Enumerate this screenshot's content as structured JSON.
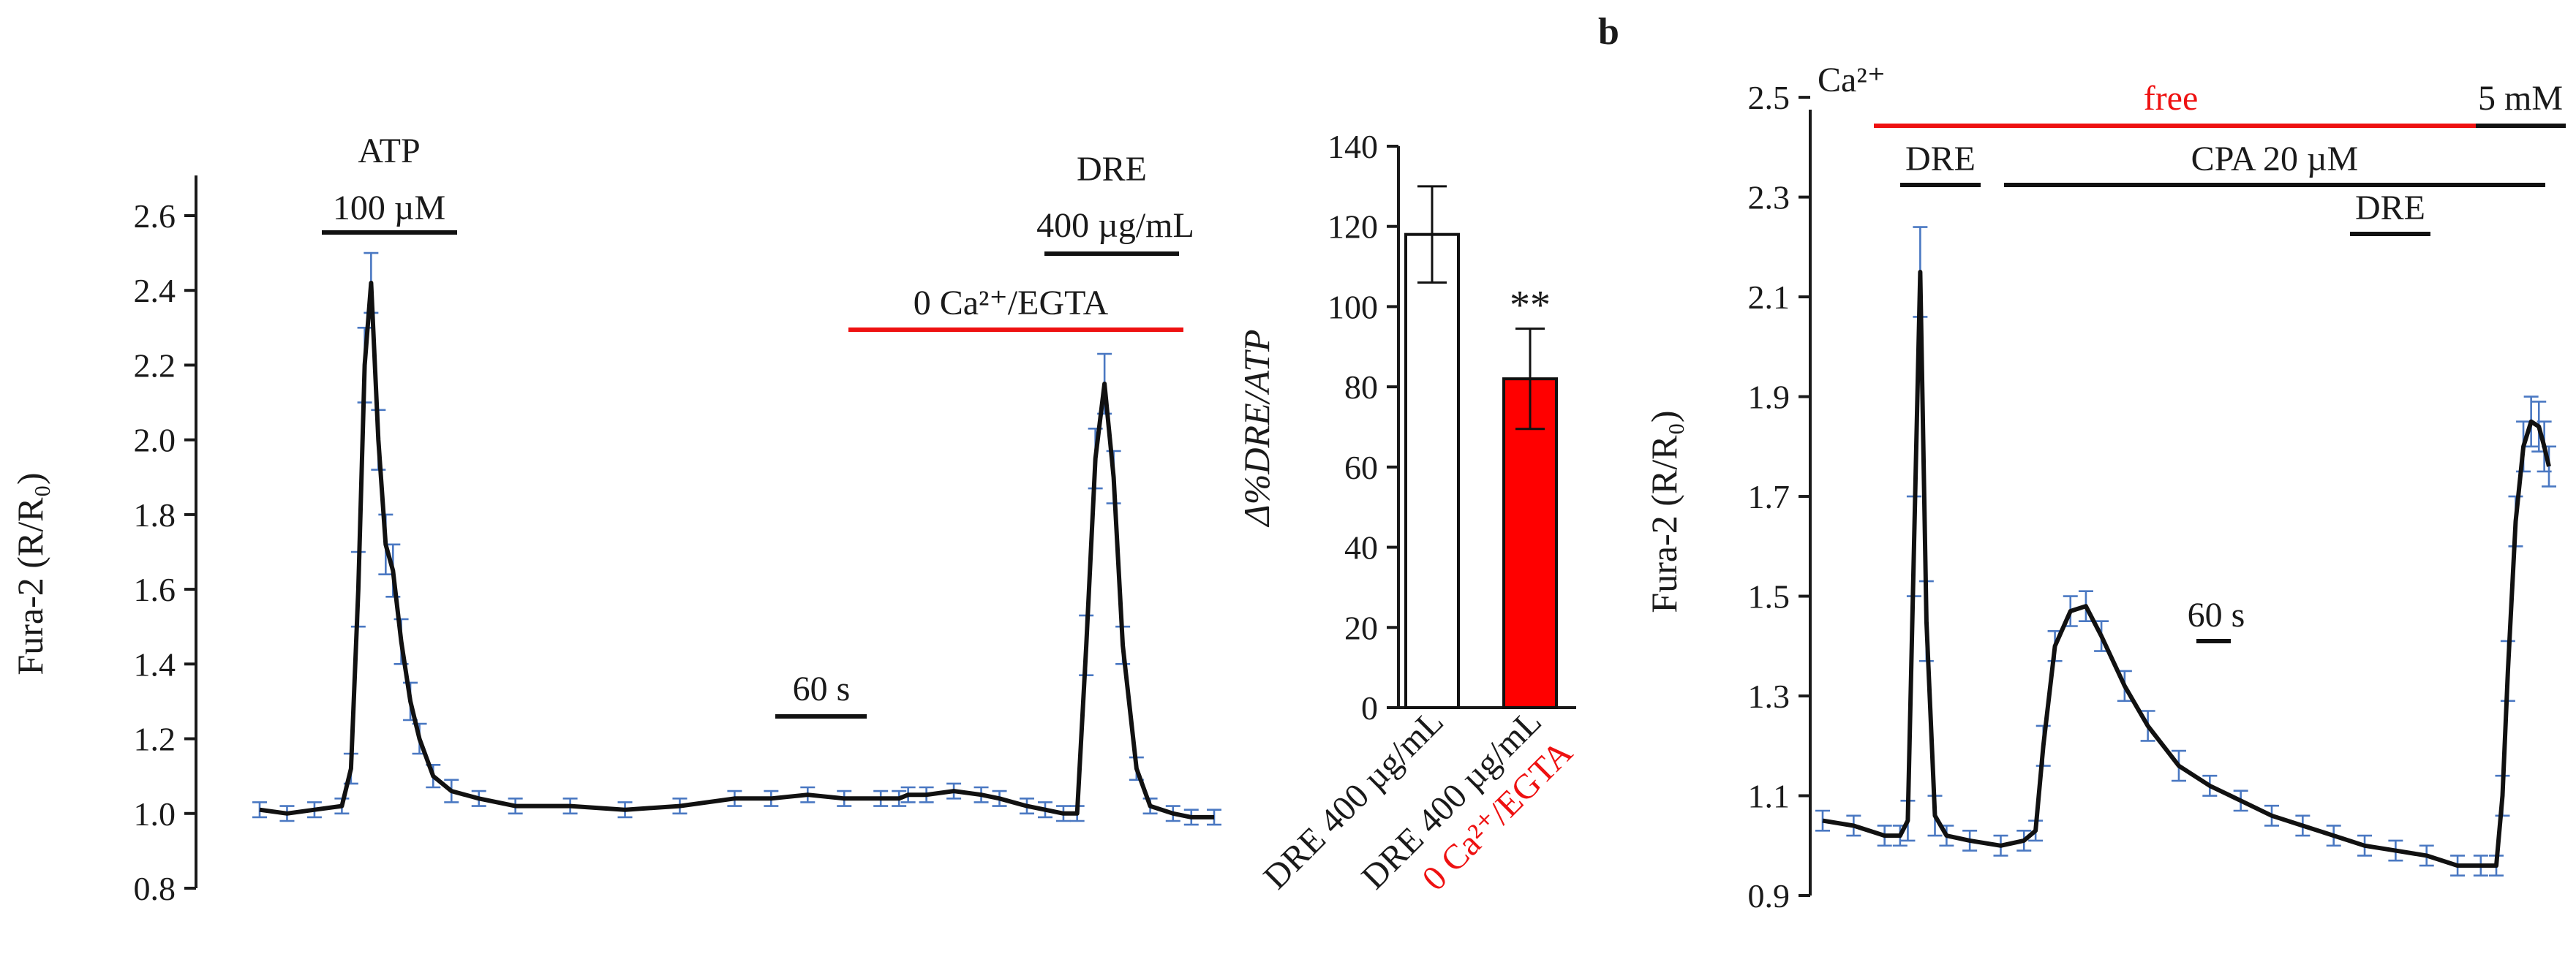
{
  "panel_b_label": "b",
  "chart_data": [
    {
      "type": "line",
      "ylabel": "Fura-2 (R/R₀)",
      "ylim": [
        0.8,
        2.6
      ],
      "yticks": [
        "0.8",
        "1.0",
        "1.2",
        "1.4",
        "1.6",
        "1.8",
        "2.0",
        "2.2",
        "2.4",
        "2.6"
      ],
      "time_scale_label": "60 s",
      "series": [
        {
          "x": [
            0,
            30,
            60,
            90,
            100,
            108,
            115,
            122,
            130,
            138,
            146,
            155,
            165,
            175,
            190,
            210,
            240,
            280,
            340,
            400,
            460,
            520,
            560,
            600,
            640,
            680,
            700,
            710,
            730,
            760,
            790,
            810,
            840,
            860,
            880,
            895,
            905,
            915,
            925,
            935,
            945,
            960,
            975,
            1000,
            1020,
            1045
          ],
          "y": [
            1.01,
            1.0,
            1.01,
            1.02,
            1.12,
            1.6,
            2.2,
            2.42,
            2.0,
            1.72,
            1.65,
            1.46,
            1.3,
            1.2,
            1.1,
            1.06,
            1.04,
            1.02,
            1.02,
            1.01,
            1.02,
            1.04,
            1.04,
            1.05,
            1.04,
            1.04,
            1.04,
            1.05,
            1.05,
            1.06,
            1.05,
            1.04,
            1.02,
            1.01,
            1.0,
            1.0,
            1.45,
            1.95,
            2.15,
            1.9,
            1.45,
            1.12,
            1.02,
            1.0,
            0.99,
            0.99
          ],
          "err": [
            0.02,
            0.02,
            0.02,
            0.02,
            0.04,
            0.1,
            0.1,
            0.08,
            0.08,
            0.08,
            0.07,
            0.06,
            0.05,
            0.04,
            0.03,
            0.03,
            0.02,
            0.02,
            0.02,
            0.02,
            0.02,
            0.02,
            0.02,
            0.02,
            0.02,
            0.02,
            0.02,
            0.02,
            0.02,
            0.02,
            0.02,
            0.02,
            0.02,
            0.02,
            0.02,
            0.02,
            0.08,
            0.08,
            0.08,
            0.07,
            0.05,
            0.03,
            0.02,
            0.02,
            0.02,
            0.02
          ]
        }
      ],
      "annotations": {
        "atp_line1": "ATP",
        "atp_line2": "100 µM",
        "dre_line1": "DRE",
        "dre_line2": "400 µg/mL",
        "ca_free": "0 Ca²⁺/EGTA"
      }
    },
    {
      "type": "bar",
      "ylabel": "Δ%DRE/ATP",
      "ylim": [
        0,
        140
      ],
      "yticks": [
        "0",
        "20",
        "40",
        "60",
        "80",
        "100",
        "120",
        "140"
      ],
      "categories": [
        "DRE 400 µg/mL",
        "DRE 400 µg/mL"
      ],
      "category_line2": [
        "",
        "0 Ca²⁺/EGTA"
      ],
      "values": [
        118,
        82
      ],
      "errors": [
        12,
        12.5
      ],
      "bar_colors": [
        "#ffffff",
        "#ff0000"
      ],
      "significance": [
        "",
        "**"
      ]
    },
    {
      "type": "line",
      "ylabel": "Fura-2 (R/R₀)",
      "ylim": [
        0.9,
        2.55
      ],
      "yticks": [
        "0.9",
        "1.1",
        "1.3",
        "1.5",
        "1.7",
        "1.9",
        "2.1",
        "2.3",
        "2.5"
      ],
      "time_scale_label": "60 s",
      "series": [
        {
          "x": [
            0,
            40,
            80,
            100,
            110,
            118,
            126,
            134,
            145,
            160,
            190,
            230,
            260,
            275,
            285,
            300,
            320,
            340,
            360,
            390,
            420,
            460,
            500,
            540,
            580,
            620,
            660,
            700,
            740,
            780,
            820,
            850,
            870,
            878,
            885,
            895,
            905,
            915,
            925,
            932,
            938
          ],
          "y": [
            1.05,
            1.04,
            1.02,
            1.02,
            1.05,
            1.6,
            2.15,
            1.45,
            1.06,
            1.02,
            1.01,
            1.0,
            1.01,
            1.03,
            1.2,
            1.4,
            1.47,
            1.48,
            1.42,
            1.32,
            1.24,
            1.16,
            1.12,
            1.09,
            1.06,
            1.04,
            1.02,
            1.0,
            0.99,
            0.98,
            0.96,
            0.96,
            0.96,
            1.1,
            1.35,
            1.65,
            1.8,
            1.85,
            1.84,
            1.8,
            1.76
          ],
          "err": [
            0.02,
            0.02,
            0.02,
            0.02,
            0.04,
            0.1,
            0.09,
            0.08,
            0.04,
            0.02,
            0.02,
            0.02,
            0.02,
            0.02,
            0.04,
            0.03,
            0.03,
            0.03,
            0.03,
            0.03,
            0.03,
            0.03,
            0.02,
            0.02,
            0.02,
            0.02,
            0.02,
            0.02,
            0.02,
            0.02,
            0.02,
            0.02,
            0.02,
            0.04,
            0.06,
            0.05,
            0.05,
            0.05,
            0.05,
            0.05,
            0.04
          ]
        }
      ],
      "annotations": {
        "ca_label": "Ca²⁺",
        "free_label": "free",
        "ca_5mm": "5 mM",
        "dre1": "DRE",
        "cpa": "CPA 20 µM",
        "dre2": "DRE"
      },
      "colors": {
        "free_line": "#ee1111",
        "error_bars": "#4a78c2"
      }
    }
  ]
}
